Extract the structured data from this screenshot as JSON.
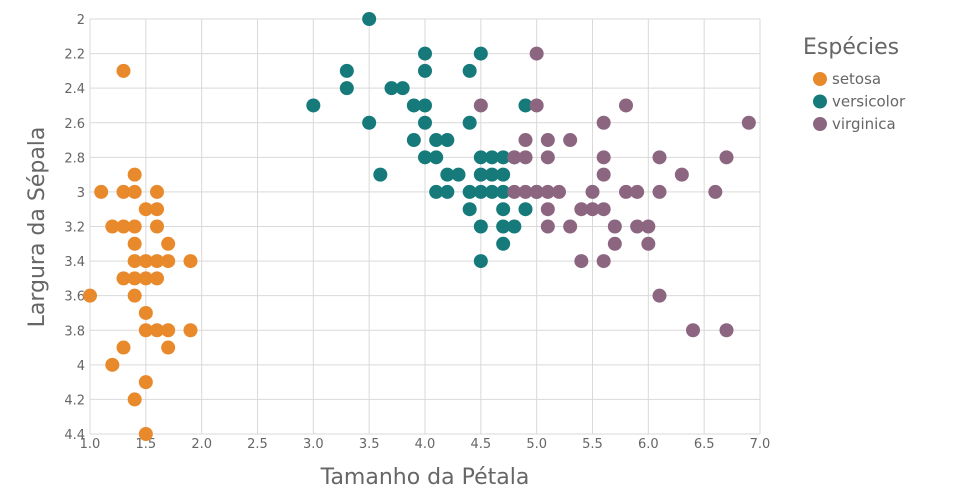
{
  "chart_data": {
    "type": "scatter",
    "xlabel": "Tamanho da Pétala",
    "ylabel": "Largura da Sépala",
    "xlim": [
      1.0,
      7.0
    ],
    "ylim": [
      2.0,
      4.4
    ],
    "y_inverted": true,
    "x_ticks": [
      "1.0",
      "1.5",
      "2.0",
      "2.5",
      "3.0",
      "3.5",
      "4.0",
      "4.5",
      "5.0",
      "5.5",
      "6.0",
      "6.5",
      "7.0"
    ],
    "y_ticks": [
      "2",
      "2.2",
      "2.4",
      "2.6",
      "2.8",
      "3",
      "3.2",
      "3.4",
      "3.6",
      "3.8",
      "4",
      "4.2",
      "4.4"
    ],
    "grid": true,
    "legend": {
      "title": "Espécies",
      "placement": "right"
    },
    "series": [
      {
        "name": "setosa",
        "color": "#e8892b",
        "points": [
          [
            1.3,
            2.3
          ],
          [
            1.0,
            3.6
          ],
          [
            1.1,
            3.0
          ],
          [
            1.3,
            3.0
          ],
          [
            1.4,
            3.0
          ],
          [
            1.6,
            3.0
          ],
          [
            1.4,
            2.9
          ],
          [
            1.5,
            3.1
          ],
          [
            1.6,
            3.1
          ],
          [
            1.2,
            3.2
          ],
          [
            1.3,
            3.2
          ],
          [
            1.4,
            3.2
          ],
          [
            1.6,
            3.2
          ],
          [
            1.4,
            3.3
          ],
          [
            1.7,
            3.3
          ],
          [
            1.4,
            3.4
          ],
          [
            1.5,
            3.4
          ],
          [
            1.6,
            3.4
          ],
          [
            1.7,
            3.4
          ],
          [
            1.9,
            3.4
          ],
          [
            1.3,
            3.5
          ],
          [
            1.4,
            3.5
          ],
          [
            1.5,
            3.5
          ],
          [
            1.6,
            3.5
          ],
          [
            1.4,
            3.6
          ],
          [
            1.5,
            3.7
          ],
          [
            1.5,
            3.8
          ],
          [
            1.6,
            3.8
          ],
          [
            1.7,
            3.8
          ],
          [
            1.9,
            3.8
          ],
          [
            1.3,
            3.9
          ],
          [
            1.7,
            3.9
          ],
          [
            1.2,
            4.0
          ],
          [
            1.5,
            4.1
          ],
          [
            1.4,
            4.2
          ],
          [
            1.5,
            4.4
          ]
        ]
      },
      {
        "name": "versicolor",
        "color": "#167a7a",
        "points": [
          [
            3.5,
            2.0
          ],
          [
            4.0,
            2.2
          ],
          [
            4.5,
            2.2
          ],
          [
            3.3,
            2.3
          ],
          [
            4.0,
            2.3
          ],
          [
            4.4,
            2.3
          ],
          [
            3.3,
            2.4
          ],
          [
            3.7,
            2.4
          ],
          [
            3.8,
            2.4
          ],
          [
            3.0,
            2.5
          ],
          [
            3.9,
            2.5
          ],
          [
            4.0,
            2.5
          ],
          [
            4.9,
            2.5
          ],
          [
            3.5,
            2.6
          ],
          [
            4.0,
            2.6
          ],
          [
            4.4,
            2.6
          ],
          [
            3.9,
            2.7
          ],
          [
            4.1,
            2.7
          ],
          [
            4.2,
            2.7
          ],
          [
            4.0,
            2.8
          ],
          [
            4.1,
            2.8
          ],
          [
            4.5,
            2.8
          ],
          [
            4.6,
            2.8
          ],
          [
            4.7,
            2.8
          ],
          [
            4.8,
            2.8
          ],
          [
            3.6,
            2.9
          ],
          [
            4.2,
            2.9
          ],
          [
            4.3,
            2.9
          ],
          [
            4.5,
            2.9
          ],
          [
            4.6,
            2.9
          ],
          [
            4.7,
            2.9
          ],
          [
            4.1,
            3.0
          ],
          [
            4.2,
            3.0
          ],
          [
            4.4,
            3.0
          ],
          [
            4.5,
            3.0
          ],
          [
            4.6,
            3.0
          ],
          [
            4.7,
            3.0
          ],
          [
            5.0,
            3.0
          ],
          [
            4.4,
            3.1
          ],
          [
            4.7,
            3.1
          ],
          [
            4.9,
            3.1
          ],
          [
            4.5,
            3.2
          ],
          [
            4.7,
            3.2
          ],
          [
            4.8,
            3.2
          ],
          [
            4.7,
            3.3
          ],
          [
            4.5,
            3.4
          ]
        ]
      },
      {
        "name": "virginica",
        "color": "#8c6680",
        "points": [
          [
            5.0,
            2.2
          ],
          [
            4.5,
            2.5
          ],
          [
            5.0,
            2.5
          ],
          [
            5.8,
            2.5
          ],
          [
            5.6,
            2.6
          ],
          [
            6.9,
            2.6
          ],
          [
            4.9,
            2.7
          ],
          [
            5.1,
            2.7
          ],
          [
            5.3,
            2.7
          ],
          [
            4.8,
            2.8
          ],
          [
            4.9,
            2.8
          ],
          [
            5.1,
            2.8
          ],
          [
            5.6,
            2.8
          ],
          [
            6.1,
            2.8
          ],
          [
            6.7,
            2.8
          ],
          [
            5.6,
            2.9
          ],
          [
            6.3,
            2.9
          ],
          [
            4.8,
            3.0
          ],
          [
            4.9,
            3.0
          ],
          [
            5.0,
            3.0
          ],
          [
            5.1,
            3.0
          ],
          [
            5.2,
            3.0
          ],
          [
            5.5,
            3.0
          ],
          [
            5.8,
            3.0
          ],
          [
            5.9,
            3.0
          ],
          [
            6.1,
            3.0
          ],
          [
            6.6,
            3.0
          ],
          [
            5.1,
            3.1
          ],
          [
            5.4,
            3.1
          ],
          [
            5.5,
            3.1
          ],
          [
            5.6,
            3.1
          ],
          [
            5.1,
            3.2
          ],
          [
            5.3,
            3.2
          ],
          [
            5.7,
            3.2
          ],
          [
            5.9,
            3.2
          ],
          [
            6.0,
            3.2
          ],
          [
            5.7,
            3.3
          ],
          [
            6.0,
            3.3
          ],
          [
            5.4,
            3.4
          ],
          [
            5.6,
            3.4
          ],
          [
            6.1,
            3.6
          ],
          [
            6.4,
            3.8
          ],
          [
            6.7,
            3.8
          ]
        ]
      }
    ]
  }
}
